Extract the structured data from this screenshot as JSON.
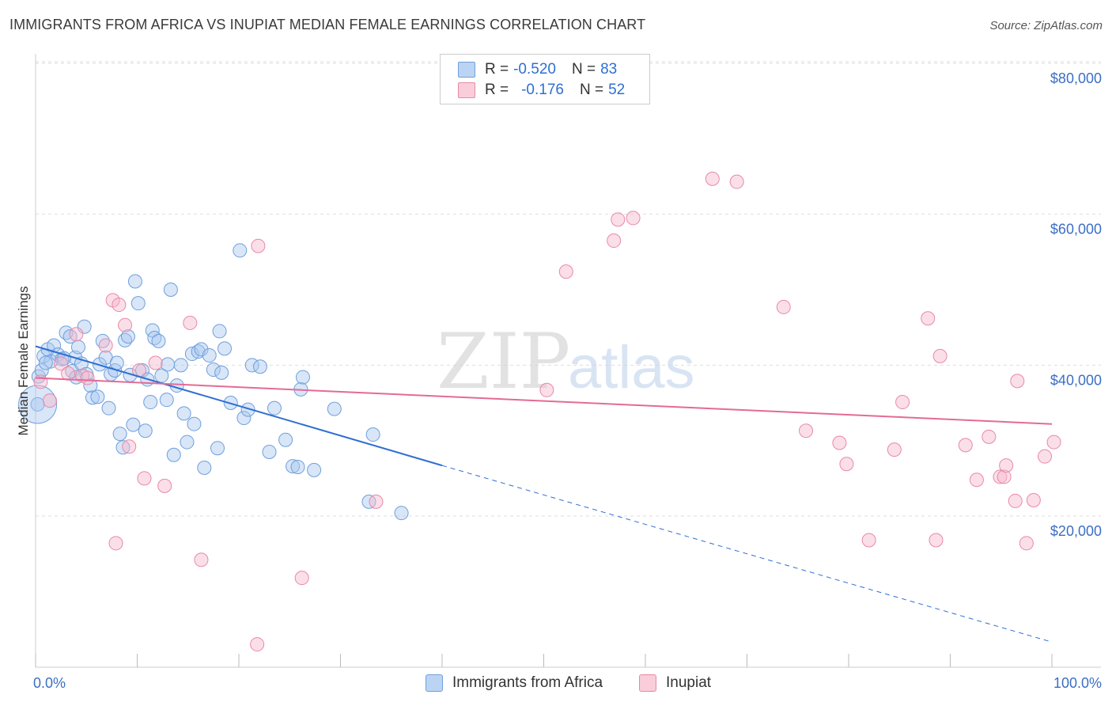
{
  "title": "IMMIGRANTS FROM AFRICA VS INUPIAT MEDIAN FEMALE EARNINGS CORRELATION CHART",
  "source": "Source: ZipAtlas.com",
  "watermark": {
    "zip": "ZIP",
    "atlas": "atlas"
  },
  "legend": {
    "r_label": "R =",
    "n_label": "N =",
    "rows": [
      {
        "name": "Immigrants from Africa",
        "r": "-0.520",
        "n": "83",
        "color": "#a9c8f0",
        "stroke": "#6f9fdc"
      },
      {
        "name": "Inupiat",
        "r": "-0.176",
        "n": "52",
        "color": "#f6b8cb",
        "stroke": "#e889a7"
      }
    ]
  },
  "chart_data": {
    "type": "scatter",
    "title": "IMMIGRANTS FROM AFRICA VS INUPIAT MEDIAN FEMALE EARNINGS CORRELATION CHART",
    "xlabel": "",
    "ylabel": "Median Female Earnings",
    "xlim": [
      0,
      100
    ],
    "ylim": [
      0,
      82000
    ],
    "x_tick_labels": [
      "0.0%",
      "100.0%"
    ],
    "y_ticks": [
      20000,
      40000,
      60000,
      80000
    ],
    "y_tick_labels": [
      "$20,000",
      "$40,000",
      "$60,000",
      "$80,000"
    ],
    "grid": true,
    "series": [
      {
        "name": "Immigrants from Africa",
        "color": "#a9c8f0",
        "stroke": "#6f9fdc",
        "trend": {
          "x0": 0,
          "y0": 42500,
          "x1": 40,
          "y1": 26700,
          "x_dash_end": 100,
          "y_dash_end": 3300,
          "color": "#2f6fd1"
        },
        "points": [
          [
            0.3,
            38500
          ],
          [
            0.6,
            39300
          ],
          [
            0.8,
            41200
          ],
          [
            1.2,
            42100
          ],
          [
            1.5,
            40500
          ],
          [
            1.8,
            42600
          ],
          [
            2.2,
            41400
          ],
          [
            2.6,
            40800
          ],
          [
            3.0,
            44300
          ],
          [
            3.4,
            43800
          ],
          [
            3.6,
            39200
          ],
          [
            3.9,
            41000
          ],
          [
            4.2,
            42400
          ],
          [
            4.5,
            40200
          ],
          [
            4.8,
            45100
          ],
          [
            5.0,
            38800
          ],
          [
            5.4,
            37300
          ],
          [
            5.6,
            35700
          ],
          [
            6.1,
            35800
          ],
          [
            6.3,
            40100
          ],
          [
            6.6,
            43200
          ],
          [
            6.9,
            41000
          ],
          [
            7.2,
            34300
          ],
          [
            7.4,
            38800
          ],
          [
            7.8,
            39300
          ],
          [
            8.0,
            40300
          ],
          [
            8.3,
            30900
          ],
          [
            8.6,
            29100
          ],
          [
            8.8,
            43300
          ],
          [
            9.1,
            43800
          ],
          [
            9.3,
            38700
          ],
          [
            9.6,
            32100
          ],
          [
            9.8,
            51100
          ],
          [
            10.1,
            48200
          ],
          [
            10.5,
            39300
          ],
          [
            10.8,
            31300
          ],
          [
            11.0,
            38100
          ],
          [
            11.3,
            35100
          ],
          [
            11.5,
            44600
          ],
          [
            11.7,
            43600
          ],
          [
            12.1,
            43200
          ],
          [
            12.4,
            38600
          ],
          [
            12.9,
            35400
          ],
          [
            13.0,
            40100
          ],
          [
            13.3,
            50000
          ],
          [
            13.6,
            28100
          ],
          [
            13.9,
            37300
          ],
          [
            14.3,
            40000
          ],
          [
            14.6,
            33600
          ],
          [
            14.9,
            29800
          ],
          [
            15.4,
            41500
          ],
          [
            15.6,
            32200
          ],
          [
            16.0,
            41800
          ],
          [
            16.3,
            42100
          ],
          [
            16.6,
            26400
          ],
          [
            17.1,
            41300
          ],
          [
            17.5,
            39400
          ],
          [
            17.9,
            29000
          ],
          [
            18.1,
            44500
          ],
          [
            18.3,
            39000
          ],
          [
            18.6,
            42200
          ],
          [
            19.2,
            35000
          ],
          [
            20.1,
            55200
          ],
          [
            20.5,
            33000
          ],
          [
            20.9,
            34100
          ],
          [
            21.3,
            40000
          ],
          [
            22.1,
            39800
          ],
          [
            23.0,
            28500
          ],
          [
            23.5,
            34300
          ],
          [
            24.6,
            30100
          ],
          [
            25.3,
            26600
          ],
          [
            25.8,
            26500
          ],
          [
            26.1,
            36800
          ],
          [
            26.3,
            38400
          ],
          [
            27.4,
            26100
          ],
          [
            29.4,
            34200
          ],
          [
            32.8,
            21900
          ],
          [
            33.2,
            30800
          ],
          [
            36.0,
            20400
          ],
          [
            0.2,
            34800
          ],
          [
            1.0,
            40300
          ],
          [
            2.8,
            40900
          ],
          [
            4.0,
            38400
          ]
        ],
        "big_point": [
          0.2,
          34800
        ]
      },
      {
        "name": "Inupiat",
        "color": "#f6b8cb",
        "stroke": "#e889a7",
        "trend": {
          "x0": 0,
          "y0": 38300,
          "x1": 100,
          "y1": 32200,
          "color": "#e36b95"
        },
        "points": [
          [
            0.5,
            37800
          ],
          [
            1.4,
            35300
          ],
          [
            2.5,
            40200
          ],
          [
            3.2,
            38900
          ],
          [
            4.0,
            44100
          ],
          [
            4.6,
            38600
          ],
          [
            5.1,
            38300
          ],
          [
            6.9,
            42600
          ],
          [
            7.6,
            48600
          ],
          [
            8.2,
            48000
          ],
          [
            7.9,
            16400
          ],
          [
            9.2,
            29200
          ],
          [
            8.8,
            45300
          ],
          [
            10.7,
            25000
          ],
          [
            10.2,
            39300
          ],
          [
            11.8,
            40300
          ],
          [
            12.7,
            24000
          ],
          [
            15.2,
            45600
          ],
          [
            16.3,
            14200
          ],
          [
            21.8,
            3000
          ],
          [
            21.9,
            55800
          ],
          [
            26.2,
            11800
          ],
          [
            33.5,
            21900
          ],
          [
            50.3,
            36700
          ],
          [
            52.2,
            52400
          ],
          [
            56.9,
            56500
          ],
          [
            57.3,
            59300
          ],
          [
            58.8,
            59500
          ],
          [
            66.6,
            64700
          ],
          [
            69.0,
            64300
          ],
          [
            73.6,
            47700
          ],
          [
            75.8,
            31300
          ],
          [
            79.1,
            29700
          ],
          [
            79.8,
            26900
          ],
          [
            82.0,
            16800
          ],
          [
            84.5,
            28800
          ],
          [
            85.3,
            35100
          ],
          [
            87.8,
            46200
          ],
          [
            88.6,
            16800
          ],
          [
            89.0,
            41200
          ],
          [
            91.5,
            29400
          ],
          [
            92.6,
            24800
          ],
          [
            93.8,
            30500
          ],
          [
            94.9,
            25200
          ],
          [
            95.3,
            25200
          ],
          [
            96.4,
            22000
          ],
          [
            96.6,
            37900
          ],
          [
            97.5,
            16400
          ],
          [
            98.2,
            22100
          ],
          [
            99.3,
            27900
          ],
          [
            100.2,
            29800
          ],
          [
            95.5,
            26700
          ]
        ]
      }
    ]
  }
}
